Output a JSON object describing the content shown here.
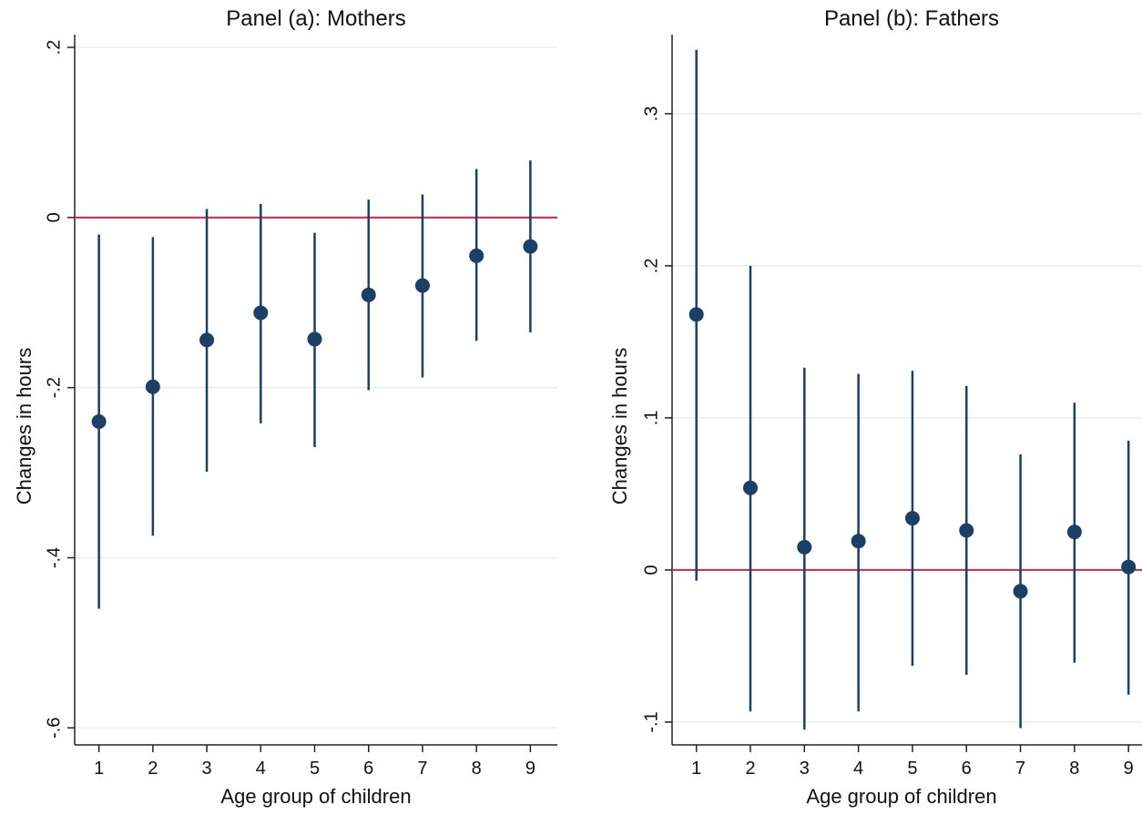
{
  "chart_data": [
    {
      "type": "scatter",
      "title": "Panel (a): Mothers",
      "xlabel": "Age group of children",
      "ylabel": "Changes in hours",
      "x": [
        1,
        2,
        3,
        4,
        5,
        6,
        7,
        8,
        9
      ],
      "y": [
        -0.24,
        -0.199,
        -0.144,
        -0.112,
        -0.143,
        -0.091,
        -0.08,
        -0.045,
        -0.034
      ],
      "ci_low": [
        -0.46,
        -0.374,
        -0.299,
        -0.242,
        -0.27,
        -0.203,
        -0.188,
        -0.145,
        -0.135
      ],
      "ci_high": [
        -0.02,
        -0.023,
        0.01,
        0.016,
        -0.018,
        0.021,
        0.027,
        0.057,
        0.067
      ],
      "xticks": [
        "1",
        "2",
        "3",
        "4",
        "5",
        "6",
        "7",
        "8",
        "9"
      ],
      "yticks": [
        ".2",
        "0",
        "-.2",
        "-.4",
        "-.6"
      ],
      "ytick_values": [
        0.2,
        0,
        -0.2,
        -0.4,
        -0.6
      ],
      "ylim": [
        -0.62,
        0.215
      ],
      "xlim": [
        0.55,
        9.5
      ],
      "reference_line": 0,
      "grid": true,
      "colors": {
        "marker": "#1b3f66",
        "reference_line": "#c8284a",
        "grid": "#e3eef2"
      }
    },
    {
      "type": "scatter",
      "title": "Panel (b): Fathers",
      "xlabel": "Age group of children",
      "ylabel": "Changes in hours",
      "x": [
        1,
        2,
        3,
        4,
        5,
        6,
        7,
        8,
        9
      ],
      "y": [
        0.168,
        0.054,
        0.015,
        0.019,
        0.034,
        0.026,
        -0.014,
        0.025,
        0.002
      ],
      "ci_low": [
        -0.007,
        -0.093,
        -0.105,
        -0.093,
        -0.063,
        -0.069,
        -0.104,
        -0.061,
        -0.082
      ],
      "ci_high": [
        0.342,
        0.2,
        0.133,
        0.129,
        0.131,
        0.121,
        0.076,
        0.11,
        0.085
      ],
      "xticks": [
        "1",
        "2",
        "3",
        "4",
        "5",
        "6",
        "7",
        "8",
        "9"
      ],
      "yticks": [
        ".3",
        ".2",
        ".1",
        "0",
        "-.1"
      ],
      "ytick_values": [
        0.3,
        0.2,
        0.1,
        0,
        -0.1
      ],
      "ylim": [
        -0.115,
        0.352
      ],
      "xlim": [
        0.55,
        9.25
      ],
      "reference_line": 0,
      "grid": true,
      "colors": {
        "marker": "#1b3f66",
        "reference_line": "#c8284a",
        "grid": "#e3eef2"
      }
    }
  ]
}
